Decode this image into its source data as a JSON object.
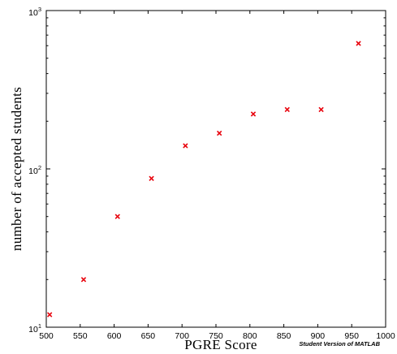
{
  "chart_data": {
    "type": "scatter",
    "title": "",
    "xlabel": "PGRE Score",
    "ylabel": "number of accepted students",
    "xlim": [
      500,
      1000
    ],
    "ylim": [
      10,
      1000
    ],
    "yscale": "log",
    "xticks": [
      500,
      550,
      600,
      650,
      700,
      750,
      800,
      850,
      900,
      950,
      1000
    ],
    "xtick_labels": [
      "500",
      "550",
      "600",
      "650",
      "700",
      "750",
      "800",
      "850",
      "900",
      "950",
      "1000"
    ],
    "yticks": [
      {
        "base": "10",
        "exp": "1",
        "value": 10
      },
      {
        "base": "10",
        "exp": "2",
        "value": 100
      },
      {
        "base": "10",
        "exp": "3",
        "value": 1000
      }
    ],
    "grid": false,
    "legend": "none",
    "marker": "x",
    "marker_color": "#e8000b",
    "series": [
      {
        "x": [
          505,
          555,
          605,
          655,
          705,
          755,
          805,
          855,
          905,
          960
        ],
        "y": [
          12,
          20,
          50,
          87,
          140,
          168,
          222,
          237,
          237,
          620
        ]
      }
    ]
  },
  "watermark": "Student Version of MATLAB"
}
